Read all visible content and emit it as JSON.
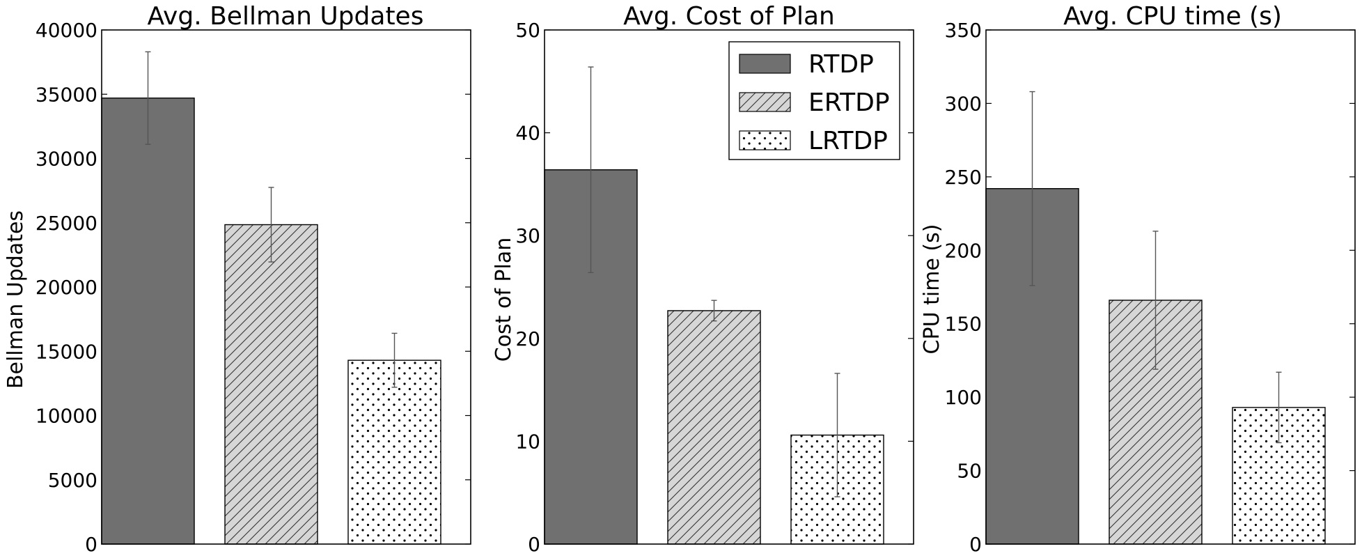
{
  "colors": {
    "rtdp": "#707070",
    "ertdp": "#d6d6d6",
    "lrtdp": "#ffffff",
    "error_bar": "#555555"
  },
  "legend": {
    "position": "top-right",
    "panel": 1,
    "entries": [
      "RTDP",
      "ERTDP",
      "LRTDP"
    ]
  },
  "chart_data": [
    {
      "type": "bar",
      "title": "Avg. Bellman Updates",
      "ylabel": "Bellman Updates",
      "xlabel": "",
      "categories": [
        "RTDP",
        "ERTDP",
        "LRTDP"
      ],
      "values": [
        34700,
        24850,
        14300
      ],
      "errors": [
        3600,
        2900,
        2100
      ],
      "ylim": [
        0,
        40000
      ],
      "yticks": [
        0,
        5000,
        10000,
        15000,
        20000,
        25000,
        30000,
        35000,
        40000
      ]
    },
    {
      "type": "bar",
      "title": "Avg. Cost of Plan",
      "ylabel": "Cost of Plan",
      "xlabel": "",
      "categories": [
        "RTDP",
        "ERTDP",
        "LRTDP"
      ],
      "values": [
        36.4,
        22.7,
        10.6
      ],
      "errors": [
        10.0,
        1.0,
        6.0
      ],
      "ylim": [
        0,
        50
      ],
      "yticks": [
        0,
        10,
        20,
        30,
        40,
        50
      ]
    },
    {
      "type": "bar",
      "title": "Avg. CPU time (s)",
      "ylabel": "CPU time (s)",
      "xlabel": "",
      "categories": [
        "RTDP",
        "ERTDP",
        "LRTDP"
      ],
      "values": [
        242,
        166,
        93
      ],
      "errors": [
        66,
        47,
        24
      ],
      "ylim": [
        0,
        350
      ],
      "yticks": [
        0,
        50,
        100,
        150,
        200,
        250,
        300,
        350
      ]
    }
  ]
}
